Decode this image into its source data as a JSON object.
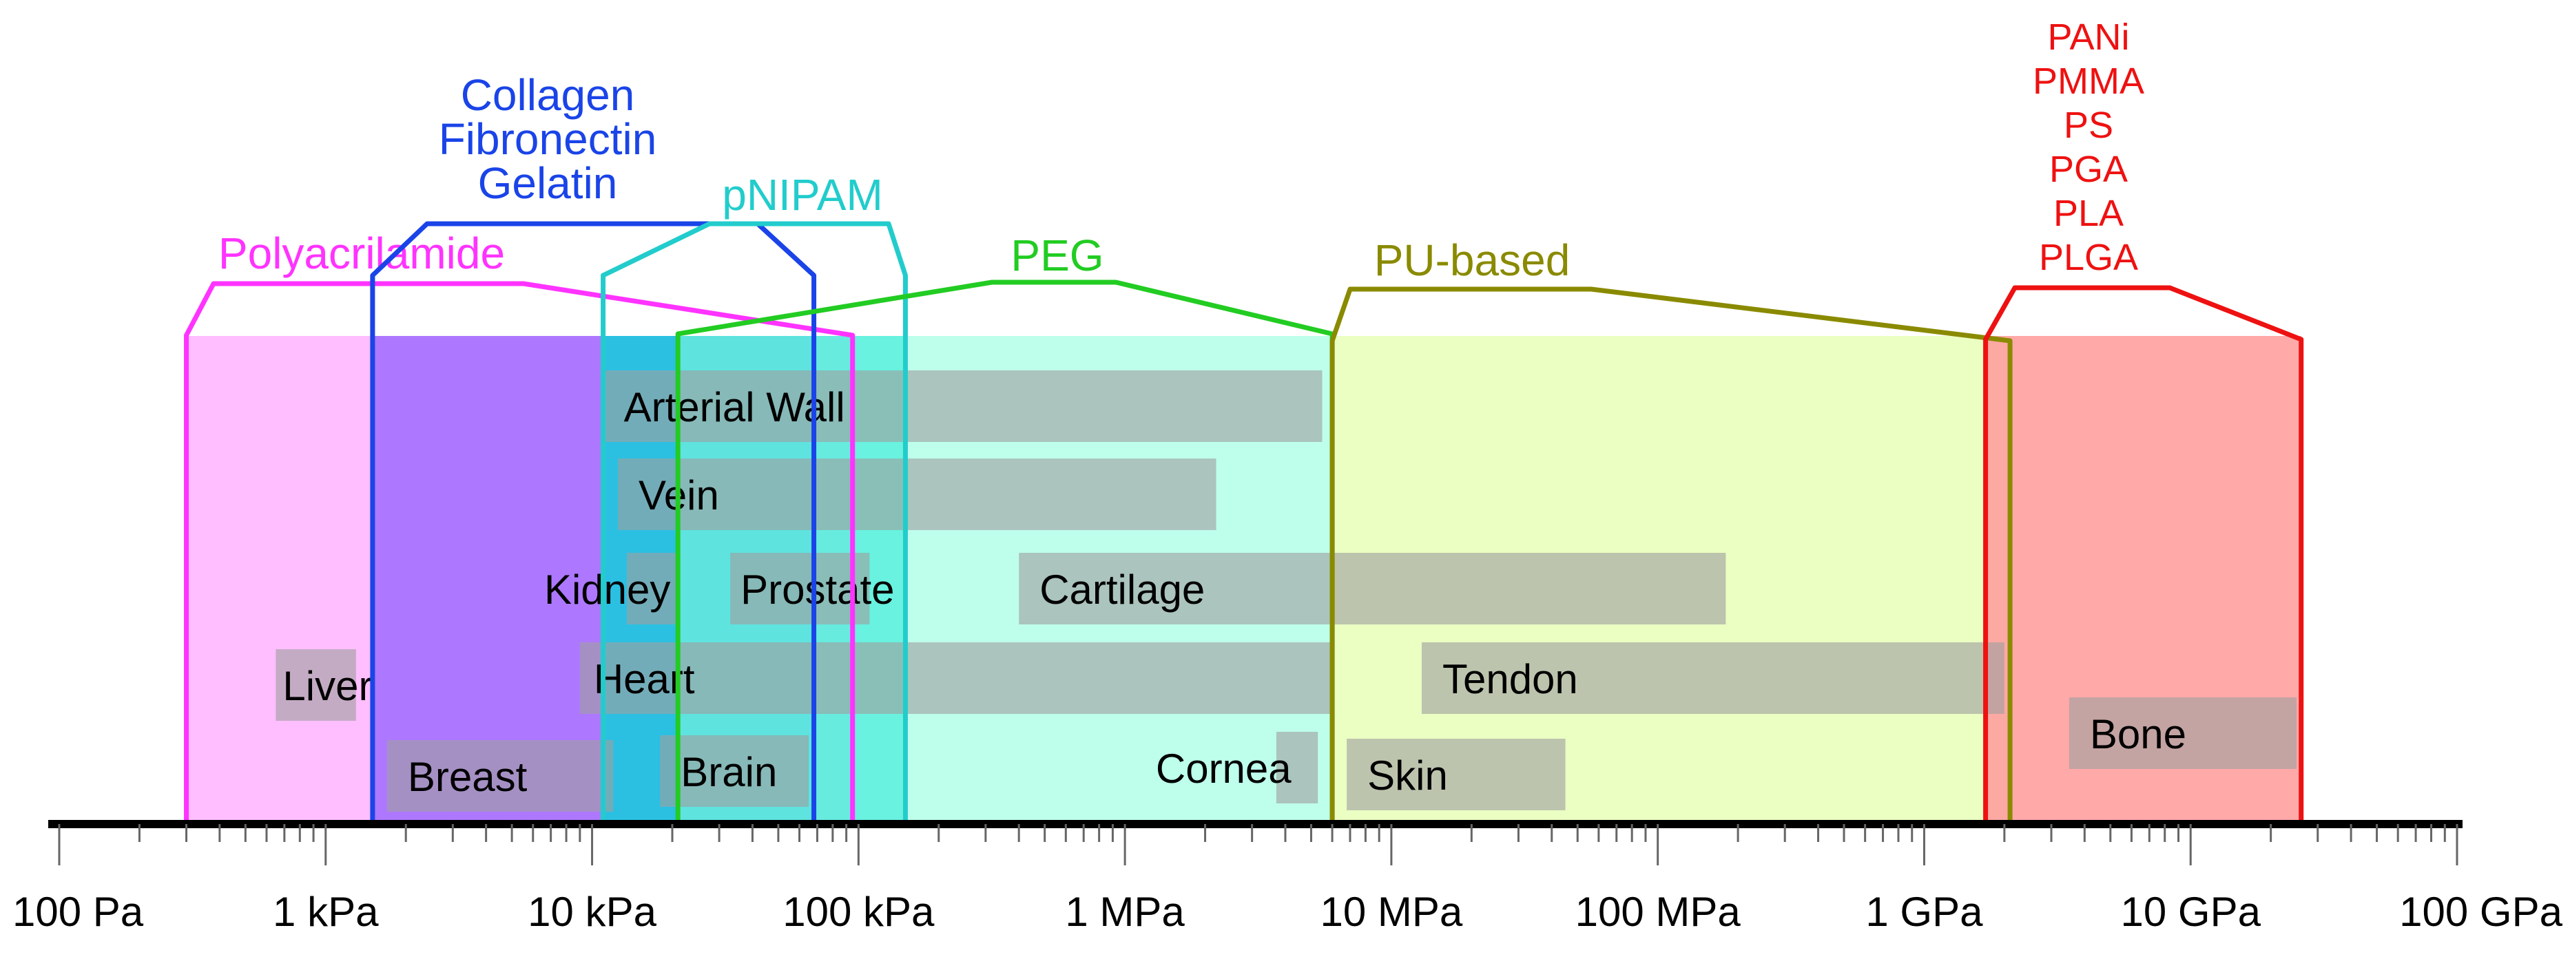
{
  "chart_data": {
    "type": "range",
    "x_scale": "log",
    "x_unit": "Pa",
    "x_range": [
      100,
      100000000000
    ],
    "tick_labels": [
      {
        "value": 100,
        "label": "100 Pa"
      },
      {
        "value": 1000,
        "label": "1 kPa"
      },
      {
        "value": 10000,
        "label": "10 kPa"
      },
      {
        "value": 100000,
        "label": "100 kPa"
      },
      {
        "value": 1000000,
        "label": "1 MPa"
      },
      {
        "value": 10000000,
        "label": "10 MPa"
      },
      {
        "value": 100000000,
        "label": "100 MPa"
      },
      {
        "value": 1000000000,
        "label": "1 GPa"
      },
      {
        "value": 10000000000,
        "label": "10 GPa"
      },
      {
        "value": 100000000000,
        "label": "100 GPa"
      }
    ],
    "materials": [
      {
        "labels": [
          "Polyacrilamide"
        ],
        "min": 300,
        "max": 95000,
        "color": "#ff33ff",
        "fill": "#ffbbff"
      },
      {
        "labels": [
          "Collagen",
          "Fibronectin",
          "Gelatin"
        ],
        "min": 1500,
        "max": 68000,
        "color": "#1a44e8",
        "fill": "#9966ff"
      },
      {
        "labels": [
          "pNIPAM"
        ],
        "min": 11000,
        "max": 150000,
        "color": "#22cccc",
        "fill": "#00d8d8"
      },
      {
        "labels": [
          "PEG"
        ],
        "min": 21000,
        "max": 6000000,
        "color": "#22cc22",
        "fill": "#88ffdd"
      },
      {
        "labels": [
          "PU-based"
        ],
        "min": 6000000,
        "max": 2100000000,
        "color": "#8a8a00",
        "fill": "#e8ffb8"
      },
      {
        "labels": [
          "PANi",
          "PMMA",
          "PS",
          "PGA",
          "PLA",
          "PLGA"
        ],
        "min": 1700000000,
        "max": 26000000000,
        "color": "#ee1111",
        "fill": "#ffa0a0"
      }
    ],
    "tissues": [
      {
        "name": "Arterial Wall",
        "min": 11000,
        "max": 5500000
      },
      {
        "name": "Vein",
        "min": 12500,
        "max": 2200000
      },
      {
        "name": "Kidney",
        "min": 13500,
        "max": 21000
      },
      {
        "name": "Prostate",
        "min": 33000,
        "max": 110000
      },
      {
        "name": "Cartilage",
        "min": 400000,
        "max": 180000000
      },
      {
        "name": "Liver",
        "min": 650,
        "max": 1300
      },
      {
        "name": "Heart",
        "min": 9000,
        "max": 6000000
      },
      {
        "name": "Tendon",
        "min": 13000000,
        "max": 2000000000
      },
      {
        "name": "Breast",
        "min": 1700,
        "max": 12000
      },
      {
        "name": "Brain",
        "min": 18000,
        "max": 65000
      },
      {
        "name": "Cornea",
        "min": 3700000,
        "max": 5300000
      },
      {
        "name": "Skin",
        "min": 6800000,
        "max": 45000000
      },
      {
        "name": "Bone",
        "min": 3500000000,
        "max": 25000000000
      }
    ]
  }
}
